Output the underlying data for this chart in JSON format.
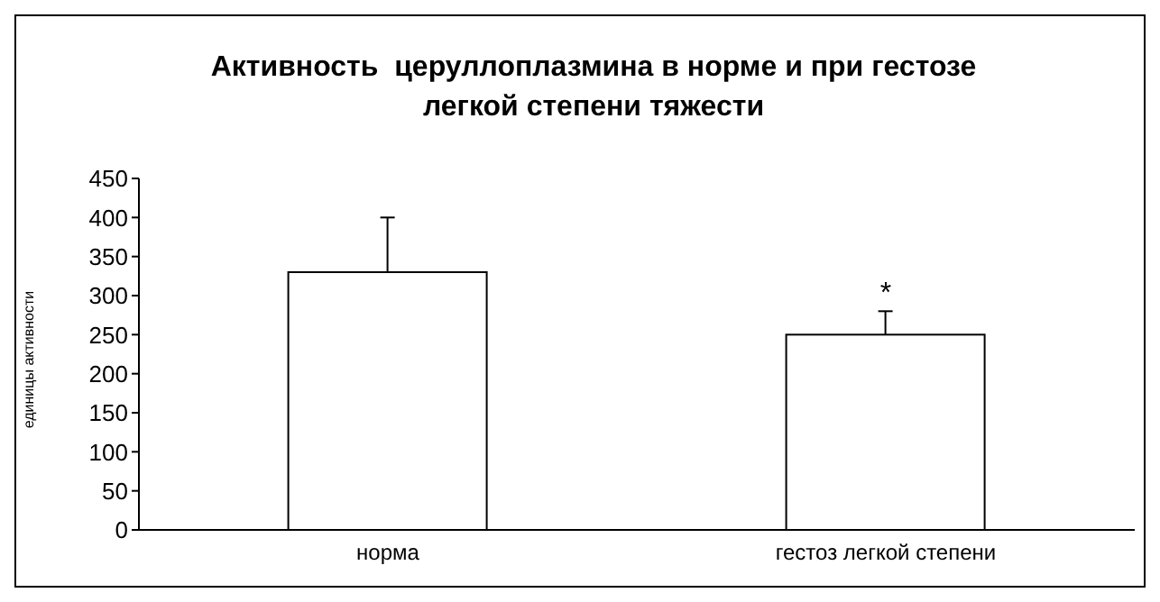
{
  "chart_data": {
    "type": "bar",
    "title": "Активность  церуллоплазмина в норме и при гестозе легкой степени тяжести",
    "ylabel": "единицы активности",
    "categories": [
      "норма",
      "гестоз легкой степени"
    ],
    "values": [
      330,
      250
    ],
    "color": "#ffffff",
    "errors": [
      [
        330,
        400
      ],
      [
        250,
        280
      ]
    ],
    "ylim": [
      0,
      450
    ],
    "yticks": [
      0,
      50,
      100,
      150,
      200,
      250,
      300,
      350,
      400,
      450
    ],
    "annotations": [
      {
        "text": "*",
        "x": "гестоз легкой степени",
        "y": 280
      }
    ]
  }
}
